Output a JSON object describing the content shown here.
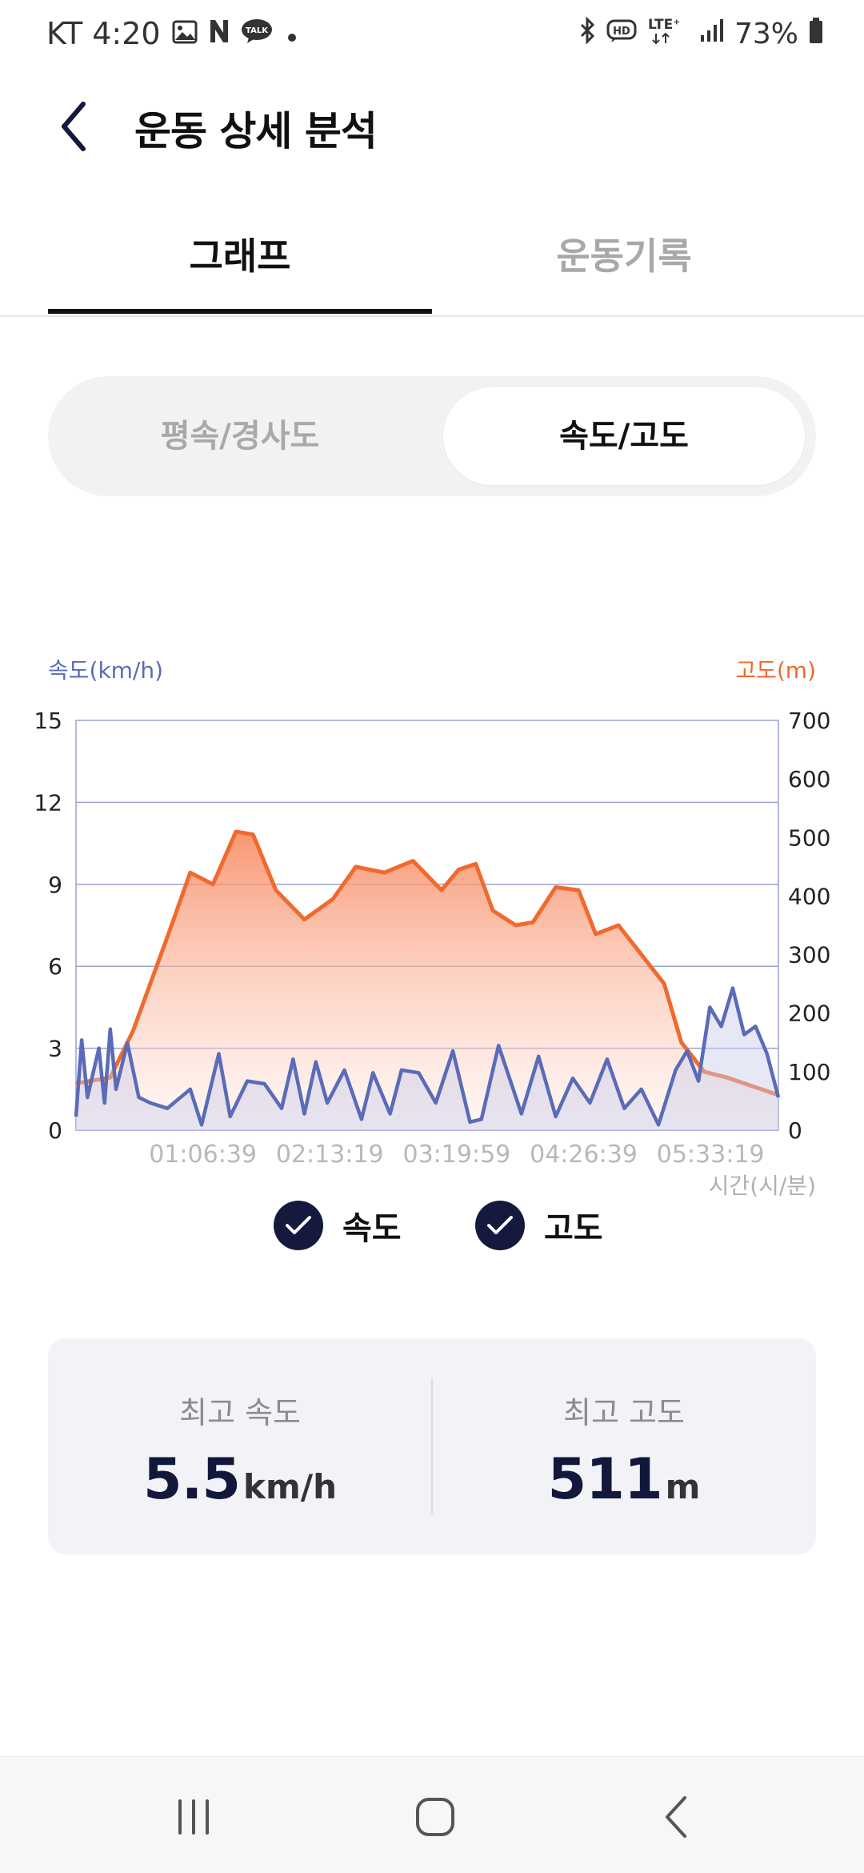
{
  "status_bar": {
    "carrier_time": "KT 4:20",
    "icons_left": [
      "gallery-icon",
      "naver-icon",
      "talk-icon",
      "dot-icon"
    ],
    "talk_label": "TALK",
    "icons_right": [
      "bluetooth-icon",
      "hd-icon",
      "lte-icon",
      "signal-icon",
      "battery-icon"
    ],
    "hd_label": "HD",
    "lte_label": "LTE⁺",
    "battery": "73%"
  },
  "header": {
    "title": "운동 상세 분석"
  },
  "tabs": [
    {
      "label": "그래프",
      "active": true
    },
    {
      "label": "운동기록",
      "active": false
    }
  ],
  "segment": [
    {
      "label": "평속/경사도",
      "selected": false
    },
    {
      "label": "속도/고도",
      "selected": true
    }
  ],
  "chart": {
    "left_axis_title": "속도(km/h)",
    "right_axis_title": "고도(m)",
    "x_unit_label": "시간(시/분)",
    "left_ticks": [
      "0",
      "3",
      "6",
      "9",
      "12",
      "15"
    ],
    "right_ticks": [
      "0",
      "100",
      "200",
      "300",
      "400",
      "500",
      "600",
      "700"
    ],
    "x_ticks": [
      "01:06:39",
      "02:13:19",
      "03:19:59",
      "04:26:39",
      "05:33:19"
    ],
    "speed_color": "#5a6bb8",
    "altitude_color": "#f06a2e"
  },
  "chart_data": {
    "type": "line",
    "x_unit": "hours",
    "left_ylim": [
      0,
      15
    ],
    "right_ylim": [
      0,
      700
    ],
    "xlim": [
      0,
      6.15
    ],
    "series": [
      {
        "name": "고도",
        "axis": "right",
        "values_x": [
          0,
          0.3,
          0.5,
          0.8,
          1.0,
          1.2,
          1.4,
          1.55,
          1.75,
          2.0,
          2.25,
          2.45,
          2.7,
          2.95,
          3.2,
          3.35,
          3.5,
          3.65,
          3.85,
          4.0,
          4.2,
          4.4,
          4.55,
          4.75,
          4.95,
          5.15,
          5.3,
          5.5,
          5.7,
          5.85,
          6.0,
          6.15
        ],
        "values": [
          80,
          90,
          170,
          330,
          440,
          420,
          510,
          505,
          410,
          360,
          395,
          450,
          440,
          460,
          410,
          445,
          455,
          375,
          350,
          355,
          415,
          410,
          335,
          350,
          300,
          250,
          150,
          100,
          90,
          80,
          70,
          60
        ]
      },
      {
        "name": "속도",
        "axis": "left",
        "values_x": [
          0,
          0.05,
          0.1,
          0.2,
          0.25,
          0.3,
          0.35,
          0.45,
          0.55,
          0.65,
          0.8,
          1.0,
          1.1,
          1.25,
          1.35,
          1.5,
          1.65,
          1.8,
          1.9,
          2.0,
          2.1,
          2.2,
          2.35,
          2.5,
          2.6,
          2.75,
          2.85,
          3.0,
          3.15,
          3.3,
          3.45,
          3.55,
          3.7,
          3.9,
          4.05,
          4.2,
          4.35,
          4.5,
          4.65,
          4.8,
          4.95,
          5.1,
          5.25,
          5.35,
          5.45,
          5.55,
          5.65,
          5.75,
          5.85,
          5.95,
          6.05,
          6.15
        ],
        "values": [
          0.5,
          3.3,
          1.2,
          3.0,
          1.0,
          3.7,
          1.5,
          3.2,
          1.2,
          1.0,
          0.8,
          1.5,
          0.2,
          2.8,
          0.5,
          1.8,
          1.7,
          0.8,
          2.6,
          0.6,
          2.5,
          1.0,
          2.2,
          0.4,
          2.1,
          0.6,
          2.2,
          2.1,
          1.0,
          2.9,
          0.3,
          0.4,
          3.1,
          0.6,
          2.7,
          0.5,
          1.9,
          1.0,
          2.6,
          0.8,
          1.5,
          0.2,
          2.2,
          2.9,
          1.8,
          4.5,
          3.8,
          5.2,
          3.5,
          3.8,
          2.8,
          1.2
        ]
      }
    ]
  },
  "legend": [
    {
      "label": "속도",
      "checked": true
    },
    {
      "label": "고도",
      "checked": true
    }
  ],
  "stats": {
    "max_speed": {
      "label": "최고 속도",
      "value": "5.5",
      "unit": "km/h"
    },
    "max_altitude": {
      "label": "최고 고도",
      "value": "511",
      "unit": "m"
    }
  },
  "nav_bar": {
    "buttons": [
      "recents-icon",
      "home-icon",
      "back-icon"
    ]
  }
}
